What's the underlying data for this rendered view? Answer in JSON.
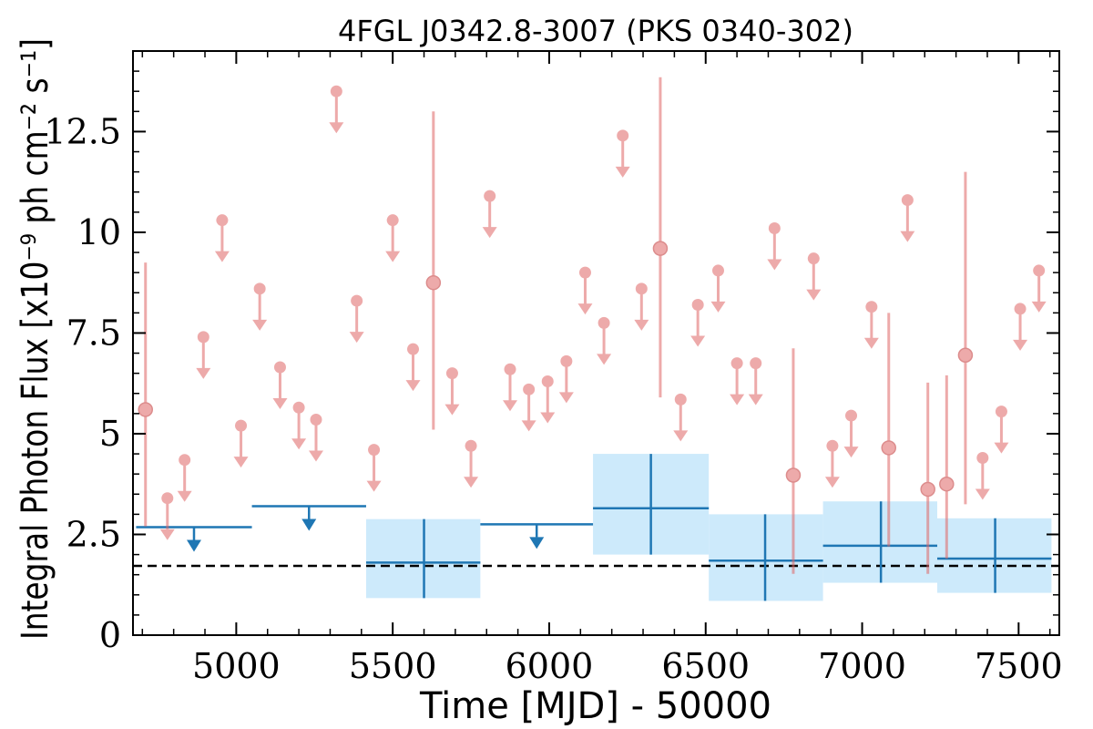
{
  "chart_data": {
    "type": "scatter",
    "title": "4FGL J0342.8-3007 (PKS 0340-302)",
    "xlabel": "Time [MJD] - 50000",
    "ylabel": "Integral Photon Flux [x10⁻⁹ ph cm⁻² s⁻¹]",
    "xlim": [
      4670,
      7630
    ],
    "ylim": [
      0,
      14.5
    ],
    "x_ticks": [
      5000,
      5500,
      6000,
      6500,
      7000,
      7500
    ],
    "x_tick_labels": [
      "5000",
      "5500",
      "6000",
      "6500",
      "7000",
      "7500"
    ],
    "y_ticks": [
      0,
      2.5,
      5,
      7.5,
      10,
      12.5
    ],
    "y_tick_labels": [
      "0",
      "2.5",
      "5",
      "7.5",
      "10",
      "12.5"
    ],
    "reference_line": {
      "y": 1.72,
      "style": "dashed",
      "color": "#000000"
    },
    "colors": {
      "short_bins": "#e06666",
      "long_bins": "#1f77b4",
      "long_bins_band": "#cdeafb"
    },
    "short_bin_upper_limits": [
      {
        "x": 4780,
        "y": 3.4
      },
      {
        "x": 4835,
        "y": 4.35
      },
      {
        "x": 4895,
        "y": 7.4
      },
      {
        "x": 4955,
        "y": 10.3
      },
      {
        "x": 5015,
        "y": 5.2
      },
      {
        "x": 5075,
        "y": 8.6
      },
      {
        "x": 5140,
        "y": 6.65
      },
      {
        "x": 5200,
        "y": 5.65
      },
      {
        "x": 5255,
        "y": 5.35
      },
      {
        "x": 5320,
        "y": 13.5
      },
      {
        "x": 5385,
        "y": 8.3
      },
      {
        "x": 5440,
        "y": 4.6
      },
      {
        "x": 5500,
        "y": 10.3
      },
      {
        "x": 5565,
        "y": 7.1
      },
      {
        "x": 5690,
        "y": 6.5
      },
      {
        "x": 5750,
        "y": 4.7
      },
      {
        "x": 5810,
        "y": 10.9
      },
      {
        "x": 5875,
        "y": 6.6
      },
      {
        "x": 5935,
        "y": 6.1
      },
      {
        "x": 5995,
        "y": 6.3
      },
      {
        "x": 6055,
        "y": 6.8
      },
      {
        "x": 6115,
        "y": 9.0
      },
      {
        "x": 6175,
        "y": 7.75
      },
      {
        "x": 6235,
        "y": 12.4
      },
      {
        "x": 6295,
        "y": 8.6
      },
      {
        "x": 6420,
        "y": 5.85
      },
      {
        "x": 6475,
        "y": 8.2
      },
      {
        "x": 6540,
        "y": 9.05
      },
      {
        "x": 6600,
        "y": 6.75
      },
      {
        "x": 6660,
        "y": 6.75
      },
      {
        "x": 6720,
        "y": 10.1
      },
      {
        "x": 6845,
        "y": 9.35
      },
      {
        "x": 6905,
        "y": 4.7
      },
      {
        "x": 6965,
        "y": 5.45
      },
      {
        "x": 7030,
        "y": 8.15
      },
      {
        "x": 7145,
        "y": 10.8
      },
      {
        "x": 7385,
        "y": 4.4
      },
      {
        "x": 7445,
        "y": 5.55
      },
      {
        "x": 7505,
        "y": 8.1
      },
      {
        "x": 7565,
        "y": 9.05
      }
    ],
    "short_bin_detections": [
      {
        "x": 4710,
        "y": 5.6,
        "yerr_low": 2.9,
        "yerr_high": 3.65
      },
      {
        "x": 5630,
        "y": 8.75,
        "yerr_low": 3.65,
        "yerr_high": 4.25
      },
      {
        "x": 6355,
        "y": 9.6,
        "yerr_low": 3.7,
        "yerr_high": 4.25
      },
      {
        "x": 6780,
        "y": 3.97,
        "yerr_low": 2.45,
        "yerr_high": 3.15
      },
      {
        "x": 7085,
        "y": 4.65,
        "yerr_low": 2.45,
        "yerr_high": 3.35
      },
      {
        "x": 7210,
        "y": 3.62,
        "yerr_low": 2.1,
        "yerr_high": 2.65
      },
      {
        "x": 7270,
        "y": 3.75,
        "yerr_low": 1.85,
        "yerr_high": 2.7
      },
      {
        "x": 7330,
        "y": 6.95,
        "yerr_low": 3.7,
        "yerr_high": 4.55
      }
    ],
    "long_bin_upper_limits": [
      {
        "x_start": 4680,
        "x_end": 5050,
        "y": 2.68
      },
      {
        "x_start": 5050,
        "x_end": 5415,
        "y": 3.2
      },
      {
        "x_start": 5780,
        "x_end": 6140,
        "y": 2.75
      }
    ],
    "long_bin_detections": [
      {
        "x": 5600,
        "x_start": 5415,
        "x_end": 5780,
        "y": 1.8,
        "yerr_low": 0.88,
        "yerr_high": 1.08
      },
      {
        "x": 6325,
        "x_start": 6140,
        "x_end": 6510,
        "y": 3.15,
        "yerr_low": 1.15,
        "yerr_high": 1.35
      },
      {
        "x": 6690,
        "x_start": 6510,
        "x_end": 6875,
        "y": 1.85,
        "yerr_low": 1.0,
        "yerr_high": 1.15
      },
      {
        "x": 7060,
        "x_start": 6875,
        "x_end": 7240,
        "y": 2.22,
        "yerr_low": 0.92,
        "yerr_high": 1.1
      },
      {
        "x": 7425,
        "x_start": 7240,
        "x_end": 7605,
        "y": 1.9,
        "yerr_low": 0.85,
        "yerr_high": 1.0
      }
    ]
  }
}
